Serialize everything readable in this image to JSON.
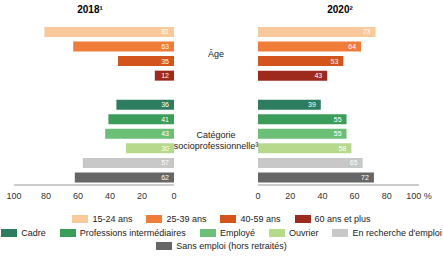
{
  "chart_data": [
    {
      "type": "bar",
      "orientation": "horizontal",
      "title": "2018¹",
      "categories": [
        "15-24 ans",
        "25-39 ans",
        "40-59 ans",
        "60 ans et plus",
        "Cadre",
        "Professions intermédiaires",
        "Employé",
        "Ouvrier",
        "En recherche d'emploi",
        "Sans emploi (hors retraités)"
      ],
      "values": [
        81,
        63,
        35,
        12,
        36,
        41,
        43,
        30,
        57,
        62
      ],
      "colors": [
        "#f9c89b",
        "#f07c3a",
        "#d4541e",
        "#9e2a1e",
        "#2e7d60",
        "#3c9c5a",
        "#6cbf77",
        "#b6d98c",
        "#c8c8c8",
        "#666666"
      ],
      "xlim": [
        0,
        100
      ],
      "xticks": [
        0,
        20,
        40,
        60,
        80,
        100
      ],
      "data_labels": true
    },
    {
      "type": "bar",
      "orientation": "horizontal",
      "title": "2020²",
      "categories": [
        "15-24 ans",
        "25-39 ans",
        "40-59 ans",
        "60 ans et plus",
        "Cadre",
        "Professions intermédiaires",
        "Employé",
        "Ouvrier",
        "En recherche d'emploi",
        "Sans emploi (hors retraités)"
      ],
      "values": [
        73,
        64,
        53,
        43,
        39,
        55,
        55,
        58,
        65,
        72
      ],
      "colors": [
        "#f9c89b",
        "#f07c3a",
        "#d4541e",
        "#9e2a1e",
        "#2e7d60",
        "#3c9c5a",
        "#6cbf77",
        "#b6d98c",
        "#c8c8c8",
        "#666666"
      ],
      "xlim": [
        0,
        100
      ],
      "xticks": [
        0,
        20,
        40,
        60,
        80,
        {
          "value": 100,
          "label": "100 %"
        }
      ],
      "data_labels": true
    }
  ],
  "groups": [
    {
      "label": "Âge",
      "categories": [
        "15-24 ans",
        "25-39 ans",
        "40-59 ans",
        "60 ans et plus"
      ]
    },
    {
      "label": "Catégorie socioprofessionnelle³",
      "categories": [
        "Cadre",
        "Professions intermédiaires",
        "Employé",
        "Ouvrier",
        "En recherche d'emploi",
        "Sans emploi (hors retraités)"
      ]
    }
  ],
  "legend": "bottom"
}
